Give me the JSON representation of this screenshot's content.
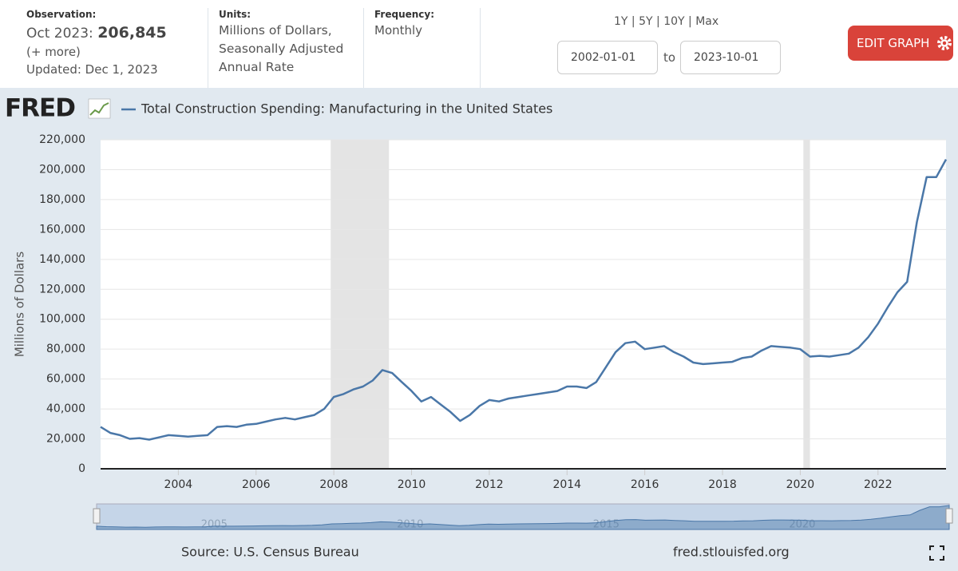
{
  "header": {
    "observation_label": "Observation:",
    "observation_date": "Oct 2023:",
    "observation_value": "206,845",
    "more": "(+ more)",
    "updated": "Updated: Dec 1, 2023",
    "units_label": "Units:",
    "units": "Millions of Dollars, Seasonally Adjusted Annual Rate",
    "frequency_label": "Frequency:",
    "frequency": "Monthly",
    "ranges": [
      "1Y",
      "5Y",
      "10Y",
      "Max"
    ],
    "start_date": "2002-01-01",
    "to": "to",
    "end_date": "2023-10-01",
    "edit_button": "EDIT GRAPH"
  },
  "logo": "FRED",
  "footer": {
    "source": "Source: U.S. Census Bureau",
    "site": "fred.stlouisfed.org"
  },
  "chart_data": {
    "type": "line",
    "ylabel": "Millions of Dollars",
    "xlim": [
      2002,
      2023.75
    ],
    "xticks": [
      2004,
      2006,
      2008,
      2010,
      2012,
      2014,
      2016,
      2018,
      2020,
      2022
    ],
    "ylim": [
      0,
      220000
    ],
    "yticks": [
      0,
      {
        "value": 20000,
        "label": "20,000"
      },
      {
        "value": 40000,
        "label": "40,000"
      },
      {
        "value": 60000,
        "label": "60,000"
      },
      {
        "value": 80000,
        "label": "80,000"
      },
      {
        "value": 100000,
        "label": "100,000"
      },
      {
        "value": 120000,
        "label": "120,000"
      },
      {
        "value": 140000,
        "label": "140,000"
      },
      {
        "value": 160000,
        "label": "160,000"
      },
      {
        "value": 180000,
        "label": "180,000"
      },
      {
        "value": 200000,
        "label": "200,000"
      },
      {
        "value": 220000,
        "label": "220,000"
      }
    ],
    "grid": true,
    "recessions": [
      [
        2007.92,
        2009.42
      ],
      [
        2020.08,
        2020.25
      ]
    ],
    "navigator_ticks": [
      2005,
      2010,
      2015,
      2020
    ],
    "x": [
      2002,
      2002.25,
      2002.5,
      2002.75,
      2003,
      2003.25,
      2003.5,
      2003.75,
      2004,
      2004.25,
      2004.5,
      2004.75,
      2005,
      2005.25,
      2005.5,
      2005.75,
      2006,
      2006.25,
      2006.5,
      2006.75,
      2007,
      2007.25,
      2007.5,
      2007.75,
      2008,
      2008.25,
      2008.5,
      2008.75,
      2009,
      2009.25,
      2009.5,
      2009.75,
      2010,
      2010.25,
      2010.5,
      2010.75,
      2011,
      2011.25,
      2011.5,
      2011.75,
      2012,
      2012.25,
      2012.5,
      2012.75,
      2013,
      2013.25,
      2013.5,
      2013.75,
      2014,
      2014.25,
      2014.5,
      2014.75,
      2015,
      2015.25,
      2015.5,
      2015.75,
      2016,
      2016.25,
      2016.5,
      2016.75,
      2017,
      2017.25,
      2017.5,
      2017.75,
      2018,
      2018.25,
      2018.5,
      2018.75,
      2019,
      2019.25,
      2019.5,
      2019.75,
      2020,
      2020.25,
      2020.5,
      2020.75,
      2021,
      2021.25,
      2021.5,
      2021.75,
      2022,
      2022.25,
      2022.5,
      2022.75,
      2023,
      2023.25,
      2023.5,
      2023.75
    ],
    "series": [
      {
        "name": "Total Construction Spending: Manufacturing in the United States",
        "color": "#4a77a8",
        "values": [
          28000,
          24000,
          22500,
          20000,
          20500,
          19500,
          21000,
          22500,
          22000,
          21500,
          22000,
          22500,
          28000,
          28500,
          28000,
          29500,
          30000,
          31500,
          33000,
          34000,
          33000,
          34500,
          36000,
          40000,
          48000,
          50000,
          53000,
          55000,
          59000,
          66000,
          64000,
          58000,
          52000,
          45000,
          48000,
          43000,
          38000,
          32000,
          36000,
          42000,
          46000,
          45000,
          47000,
          48000,
          49000,
          50000,
          51000,
          52000,
          55000,
          55000,
          54000,
          58000,
          68000,
          78000,
          84000,
          85000,
          80000,
          81000,
          82000,
          78000,
          75000,
          71000,
          70000,
          70500,
          71000,
          71500,
          74000,
          75000,
          79000,
          82000,
          81500,
          81000,
          80000,
          75000,
          75500,
          75000,
          76000,
          77000,
          81000,
          88000,
          97000,
          108000,
          118000,
          125000,
          165000,
          195000,
          195000,
          206845
        ]
      }
    ]
  }
}
